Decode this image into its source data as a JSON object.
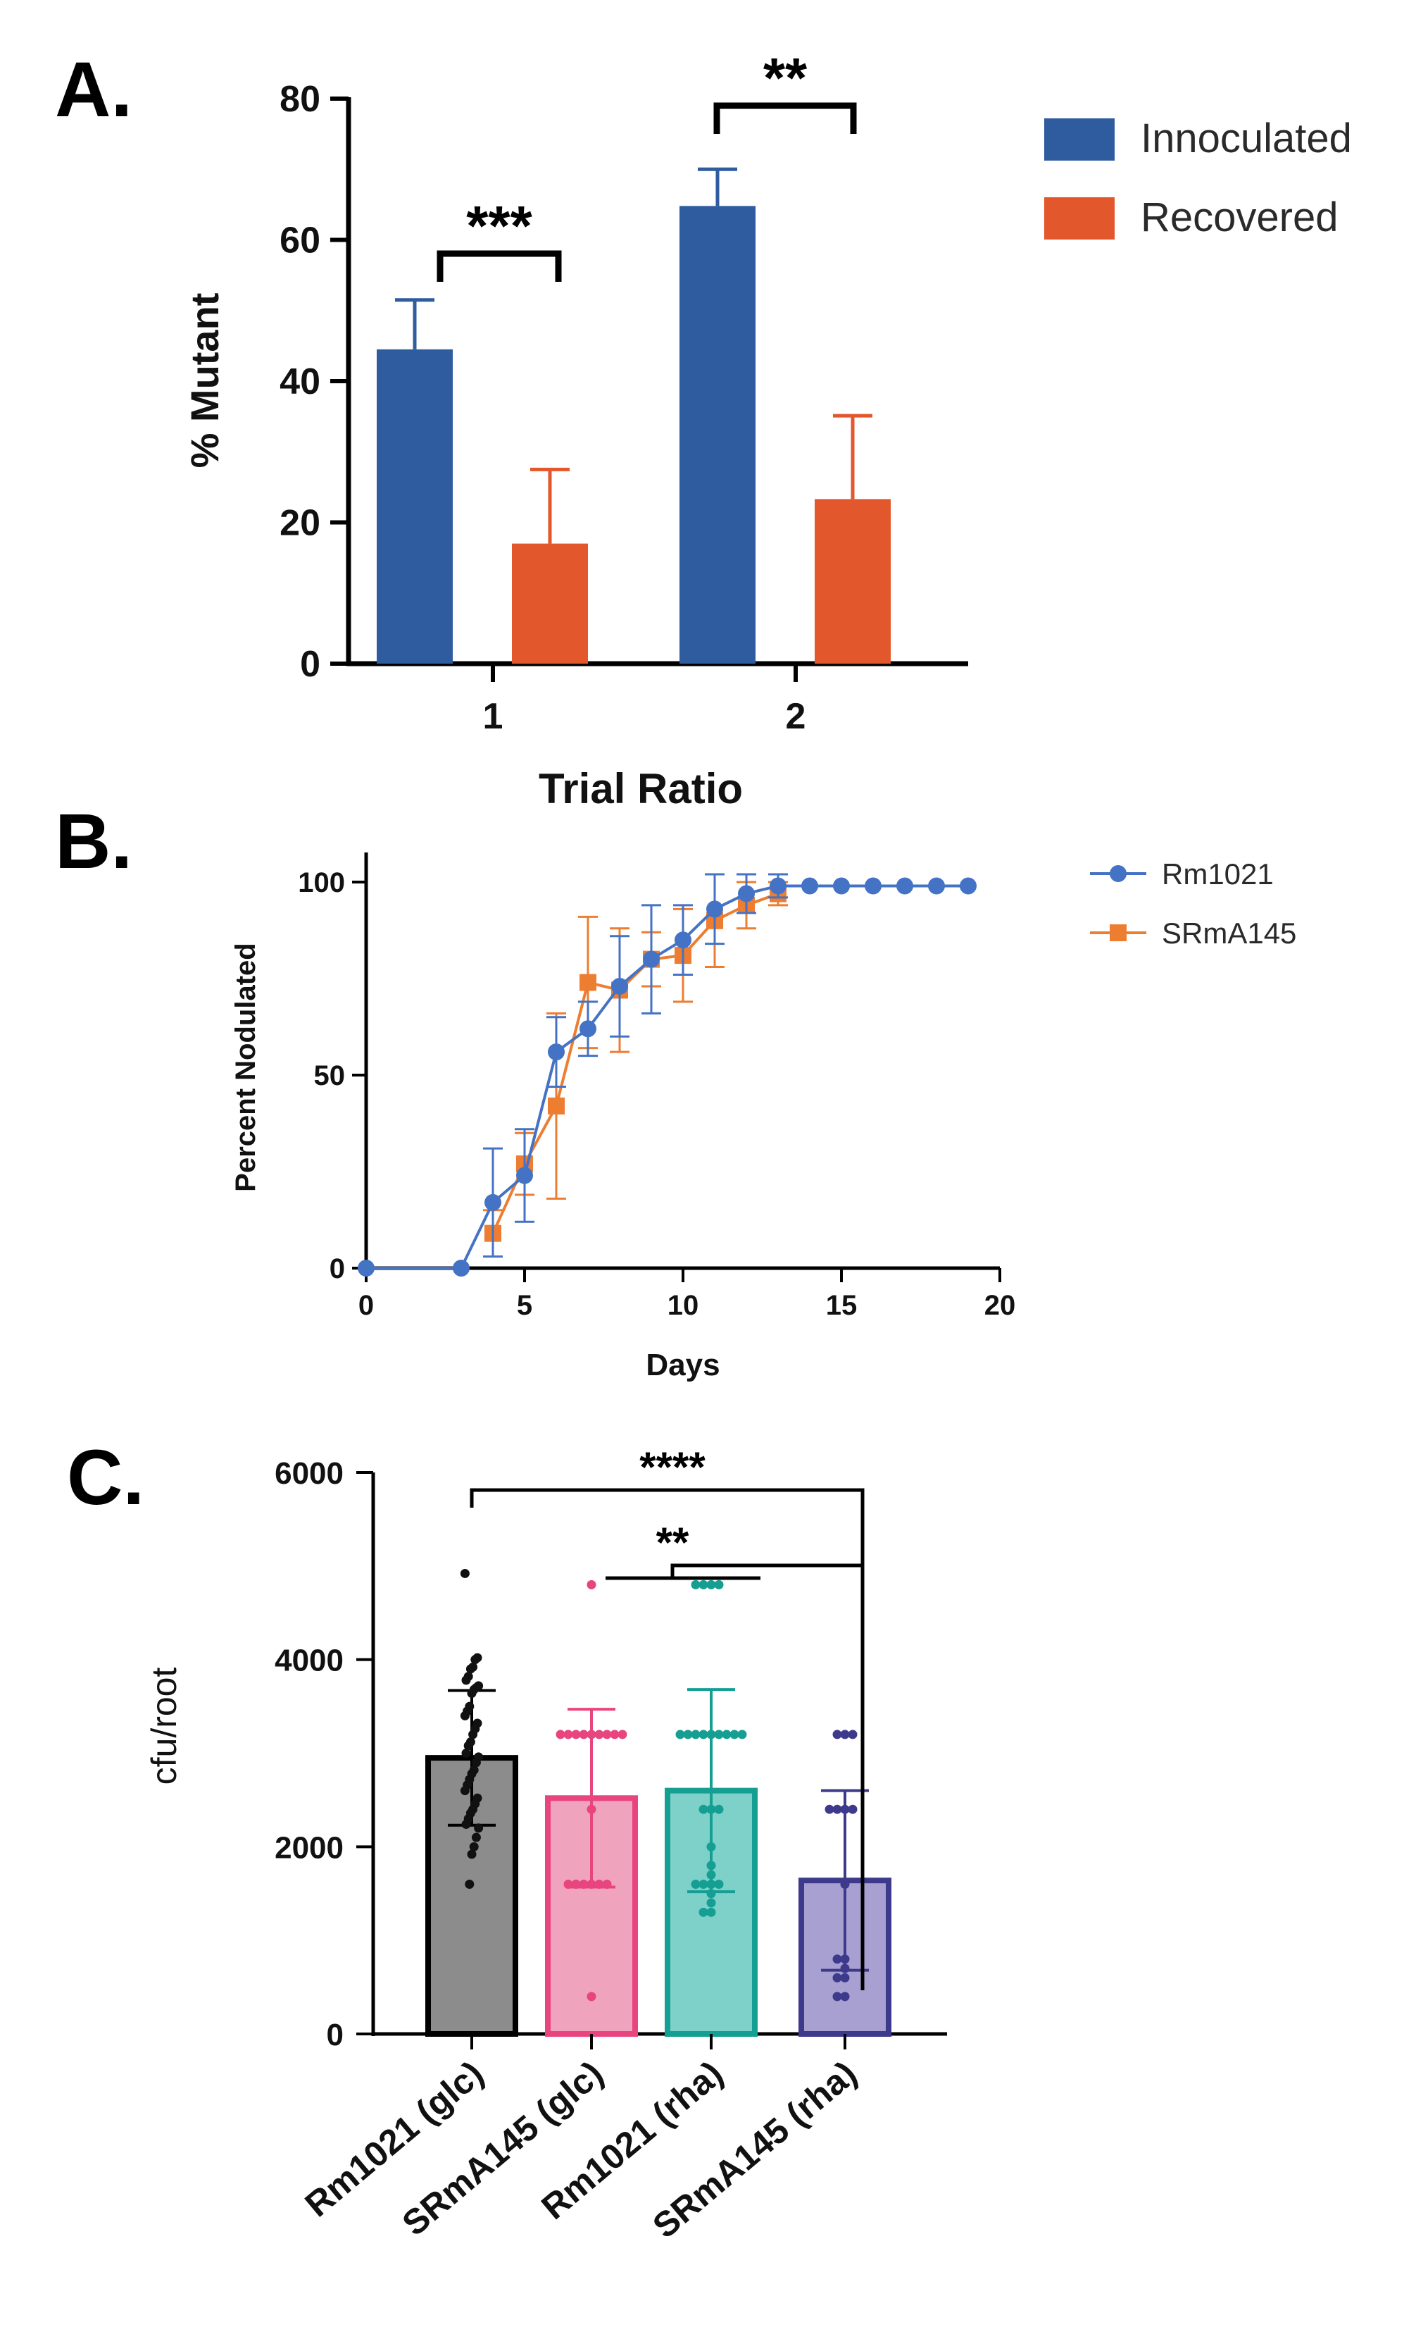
{
  "figure": {
    "background": "#ffffff"
  },
  "chart_data": [
    {
      "panel": "A.",
      "type": "bar",
      "title": "",
      "xlabel": "Trial Ratio",
      "ylabel": "% Mutant",
      "ylim": [
        0,
        80
      ],
      "yticks": [
        0,
        20,
        40,
        60,
        80
      ],
      "categories": [
        "1",
        "2"
      ],
      "series": [
        {
          "name": "Innoculated",
          "color": "#2E5C9E",
          "values": [
            44.5,
            64.8
          ],
          "err": [
            7.0,
            5.2
          ]
        },
        {
          "name": "Recovered",
          "color": "#E2572B",
          "values": [
            17.0,
            23.3
          ],
          "err": [
            10.5,
            11.8
          ]
        }
      ],
      "significance": [
        "***",
        "**"
      ],
      "legend": "right"
    },
    {
      "panel": "B.",
      "type": "line",
      "title": "",
      "xlabel": "Days",
      "ylabel": "Percent Nodulated",
      "xlim": [
        0,
        20
      ],
      "ylim": [
        0,
        100
      ],
      "xticks": [
        0,
        5,
        10,
        15,
        20
      ],
      "yticks": [
        0,
        50,
        100
      ],
      "series": [
        {
          "name": "Rm1021",
          "color": "#4472C4",
          "marker": "circle",
          "x": [
            0,
            3,
            4,
            5,
            6,
            7,
            8,
            9,
            10,
            11,
            12,
            13,
            14,
            15,
            16,
            17,
            18,
            19
          ],
          "y": [
            0,
            0,
            17,
            24,
            56,
            62,
            73,
            80,
            85,
            93,
            97,
            99,
            99,
            99,
            99,
            99,
            99,
            99
          ],
          "err": [
            0,
            0,
            14,
            12,
            9,
            7,
            13,
            14,
            9,
            9,
            5,
            3,
            0,
            0,
            0,
            0,
            0,
            0
          ]
        },
        {
          "name": "SRmA145",
          "color": "#ED7D31",
          "marker": "square",
          "x": [
            4,
            5,
            6,
            7,
            8,
            9,
            10,
            11,
            12,
            13
          ],
          "y": [
            9,
            27,
            42,
            74,
            72,
            80,
            81,
            90,
            94,
            97
          ],
          "err": [
            6,
            8,
            24,
            17,
            16,
            7,
            12,
            12,
            6,
            3
          ]
        }
      ],
      "legend": "right"
    },
    {
      "panel": "C.",
      "type": "bar",
      "title": "",
      "xlabel": "",
      "ylabel": "cfu/root",
      "ylim": [
        0,
        6000
      ],
      "yticks": [
        0,
        2000,
        4000,
        6000
      ],
      "categories": [
        "Rm1021 (glc)",
        "SRmA145 (glc)",
        "Rm1021 (rha)",
        "SRmA145 (rha)"
      ],
      "values": [
        2950,
        2520,
        2600,
        1640
      ],
      "err": [
        720,
        950,
        1080,
        960
      ],
      "fills": [
        "#8C8C8C",
        "#F0A3BD",
        "#7ED1C9",
        "#A8A0D0"
      ],
      "edges": [
        "#000000",
        "#E8447E",
        "#159E92",
        "#3D3A8C"
      ],
      "points": [
        [
          4920,
          4020,
          4000,
          3920,
          3900,
          3820,
          3780,
          3720,
          3700,
          3680,
          3640,
          3500,
          3450,
          3400,
          3320,
          3260,
          3200,
          3120,
          3080,
          3000,
          2960,
          2900,
          2820,
          2780,
          2720,
          2660,
          2600,
          2520,
          2460,
          2400,
          2360,
          2300,
          2240,
          2200,
          2100,
          2000,
          1920,
          1600
        ],
        [
          4800,
          3200,
          3200,
          3200,
          3200,
          3200,
          3200,
          3200,
          3200,
          3200,
          2400,
          1600,
          1600,
          1600,
          1600,
          1600,
          1600,
          400
        ],
        [
          4800,
          4800,
          4800,
          4800,
          3200,
          3200,
          3200,
          3200,
          3200,
          3200,
          3200,
          3200,
          3200,
          2400,
          2400,
          2400,
          2000,
          1800,
          1700,
          1600,
          1600,
          1600,
          1600,
          1500,
          1400,
          1300,
          1300
        ],
        [
          3200,
          3200,
          3200,
          2400,
          2400,
          2400,
          2400,
          1600,
          800,
          800,
          700,
          600,
          600,
          400,
          400
        ]
      ],
      "significance": [
        "****",
        "**"
      ]
    }
  ]
}
